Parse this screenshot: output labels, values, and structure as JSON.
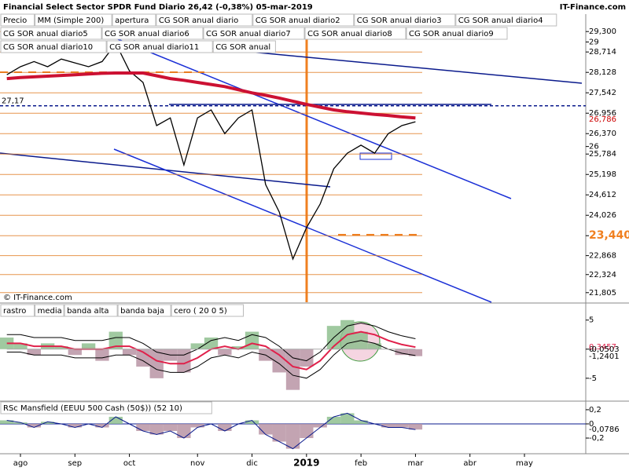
{
  "header": {
    "title": "Financial Select Sector SPDR Fund  Diario  26,42 (-0,38%)  05-mar-2019",
    "brand": "IT-Finance.com",
    "copyright": "© IT-Finance.com"
  },
  "chart_data": [
    {
      "type": "line",
      "legend_extra": [
        "apertura",
        "CG SOR anual diario",
        "CG SOR anual diario2",
        "CG SOR anual diario3",
        "CG SOR anual diario4",
        "CG SOR anual diario5",
        "CG SOR anual diario6",
        "CG SOR anual diario7",
        "CG SOR anual diario8",
        "CG SOR anual diario9",
        "CG SOR anual diario10",
        "CG SOR anual diario11",
        "CG SOR anual"
      ],
      "categories": [
        null,
        "ago",
        null,
        null,
        null,
        "sep",
        null,
        null,
        null,
        "oct",
        null,
        null,
        null,
        null,
        "nov",
        null,
        null,
        null,
        "dic",
        null,
        null,
        null,
        "2019",
        null,
        null,
        null,
        "feb",
        null,
        null,
        null,
        "mar",
        null,
        null,
        null,
        "abr",
        null,
        null,
        null,
        "may",
        null,
        null,
        null,
        null
      ],
      "series": [
        {
          "name": "Precio",
          "color": "#000000",
          "values": [
            28.06,
            28.29,
            28.44,
            28.29,
            28.51,
            28.4,
            28.29,
            28.44,
            28.96,
            28.17,
            27.84,
            26.6,
            26.82,
            25.47,
            26.82,
            27.05,
            26.37,
            26.82,
            27.05,
            24.91,
            24.12,
            22.77,
            23.67,
            24.35,
            25.36,
            25.81,
            26.04,
            25.81,
            26.37,
            26.6,
            26.71,
            null,
            null,
            null,
            null,
            null,
            null,
            null,
            null,
            null,
            null,
            null,
            null
          ]
        },
        {
          "name": "MM (Simple 200)",
          "color": "#cc1133",
          "values": [
            27.95,
            27.98,
            28.0,
            28.02,
            28.04,
            28.06,
            28.08,
            28.1,
            28.11,
            28.11,
            28.11,
            28.03,
            27.95,
            27.9,
            27.84,
            27.78,
            27.72,
            27.63,
            27.54,
            27.47,
            27.39,
            27.3,
            27.21,
            27.13,
            27.05,
            27.0,
            26.96,
            26.92,
            26.89,
            26.85,
            26.82,
            null,
            null,
            null,
            null,
            null,
            null,
            null,
            null,
            null,
            null,
            null,
            null
          ]
        }
      ],
      "ylim": [
        21.53,
        29.8
      ],
      "yticks": [
        {
          "value": 29.3,
          "label": "29,300"
        },
        {
          "value": 28.714,
          "label": "28,714"
        },
        {
          "value": 28.128,
          "label": "28,128"
        },
        {
          "value": 27.542,
          "label": "27,542"
        },
        {
          "value": 26.956,
          "label": "26,956"
        },
        {
          "value": 26.37,
          "label": "26,370"
        },
        {
          "value": 25.784,
          "label": "25,784"
        },
        {
          "value": 25.198,
          "label": "25,198"
        },
        {
          "value": 24.612,
          "label": "24,612"
        },
        {
          "value": 24.026,
          "label": "24,026"
        },
        {
          "value": 23.44,
          "label": "23,440",
          "emphasis": true
        },
        {
          "value": 22.868,
          "label": "22,868"
        },
        {
          "value": 22.324,
          "label": "22,324"
        },
        {
          "value": 21.805,
          "label": "21,805"
        }
      ],
      "minor_yticks": [
        29,
        26
      ],
      "markers": [
        {
          "value": 26.786,
          "label": "26,786",
          "color": "#cc0000"
        }
      ],
      "reference_line": {
        "value": 27.17,
        "label": "27,17"
      },
      "grid": true,
      "grid_color": "#e07a20"
    },
    {
      "type": "indicator",
      "series": [
        {
          "name": "rastro",
          "color": "#8fbf8f",
          "negative_color": "#b894a4",
          "values": [
            2,
            1,
            -1,
            1,
            0.5,
            -1,
            1,
            -2,
            3,
            -1,
            -3,
            -5,
            -2,
            -4,
            1,
            2,
            -1,
            0.5,
            3,
            -2,
            -4,
            -7,
            -3,
            0,
            4,
            5,
            3,
            1,
            0,
            -1,
            -1.2
          ]
        },
        {
          "name": "media",
          "color": "#e0204a",
          "values": [
            1,
            1,
            0.5,
            0.5,
            0.5,
            0,
            0,
            0,
            0.5,
            0.5,
            -0.5,
            -2,
            -2.5,
            -2.5,
            -1.5,
            0,
            0.5,
            0,
            1,
            0.5,
            -1,
            -3,
            -3.5,
            -2,
            0.5,
            2.5,
            3,
            2.5,
            1.5,
            0.8,
            0.35
          ]
        },
        {
          "name": "banda alta",
          "color": "#000000",
          "values": [
            2.5,
            2.5,
            2,
            2,
            2,
            1.5,
            1.5,
            1.5,
            2,
            2,
            1,
            -0.5,
            -1,
            -1,
            0,
            1.5,
            2,
            1.5,
            2.5,
            2,
            0.5,
            -1.5,
            -2,
            -0.5,
            2,
            4,
            4.5,
            4,
            3,
            2.3,
            1.8
          ]
        },
        {
          "name": "banda baja",
          "color": "#000000",
          "values": [
            -0.5,
            -0.5,
            -1,
            -1,
            -1,
            -1.5,
            -1.5,
            -1.5,
            -1,
            -1,
            -2,
            -3.5,
            -4,
            -4,
            -3,
            -1.5,
            -1,
            -1.5,
            -0.5,
            -1,
            -2.5,
            -4.5,
            -5,
            -3.5,
            -1,
            1,
            1.5,
            1,
            0,
            -0.7,
            -1.1
          ]
        },
        {
          "name": "cero ( 20 0 5)",
          "color": "#aaaaaa",
          "values": [
            0,
            0,
            0,
            0,
            0,
            0,
            0,
            0,
            0,
            0,
            0,
            0,
            0,
            0,
            0,
            0,
            0,
            0,
            0,
            0,
            0,
            0,
            0,
            0,
            0,
            0,
            0,
            0,
            0,
            0,
            0
          ]
        }
      ],
      "ylim": [
        -8.8,
        7.8
      ],
      "yticks": [
        5,
        0,
        -5
      ],
      "markers": [
        {
          "value": 0.3457,
          "label": "0,3457",
          "color": "#e0204a"
        },
        {
          "value": -0.0503,
          "label": "-0,0503",
          "color": "#000000"
        },
        {
          "value": -1.2401,
          "label": "-1,2401",
          "color": "#000000"
        }
      ]
    },
    {
      "type": "area",
      "series": [
        {
          "name": "RSc Mansfield (EEUU 500 Cash (50$)) (52 10)",
          "color": "#8fbf8f",
          "negative_color": "#b894a4",
          "values": [
            0.05,
            0.02,
            -0.05,
            0.03,
            0,
            -0.05,
            0,
            -0.05,
            0.1,
            0,
            -0.1,
            -0.15,
            -0.1,
            -0.2,
            -0.05,
            0,
            -0.1,
            0,
            0.05,
            -0.15,
            -0.25,
            -0.35,
            -0.2,
            -0.05,
            0.1,
            0.15,
            0.05,
            0,
            -0.05,
            -0.05,
            -0.08
          ]
        }
      ],
      "ylim": [
        -0.41,
        0.31
      ],
      "yticks": [
        {
          "value": 0.2,
          "label": "0,2"
        },
        0,
        {
          "value": -0.2,
          "label": "-0,2"
        }
      ],
      "markers": [
        {
          "value": -0.0786,
          "label": "-0,0786",
          "color": "#000000"
        }
      ]
    }
  ]
}
